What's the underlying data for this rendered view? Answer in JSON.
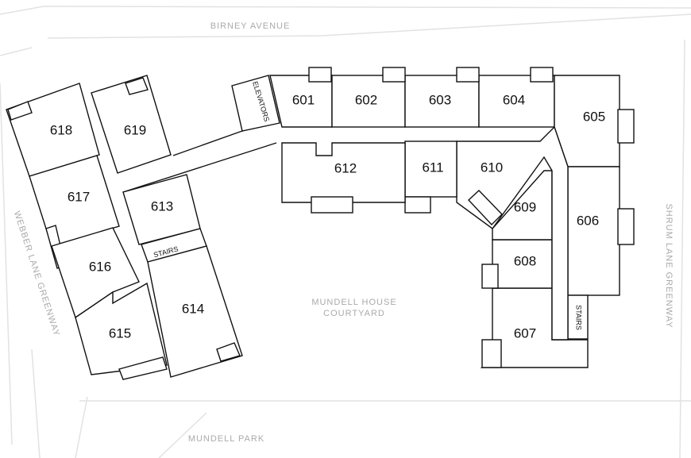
{
  "streets": {
    "north": "BIRNEY AVENUE",
    "west": "WEBBER LANE GREENWAY",
    "east": "SHRUM LANE GREENWAY",
    "south": "MUNDELL PARK"
  },
  "courtyard": [
    "MUNDELL HOUSE",
    "COURTYARD"
  ],
  "labels": {
    "elevators": "ELEVATORS",
    "stairs_west": "STAIRS",
    "stairs_east": "STAIRS"
  },
  "units": [
    "601",
    "602",
    "603",
    "604",
    "605",
    "606",
    "607",
    "608",
    "609",
    "610",
    "611",
    "612",
    "613",
    "614",
    "615",
    "616",
    "617",
    "618",
    "619"
  ]
}
